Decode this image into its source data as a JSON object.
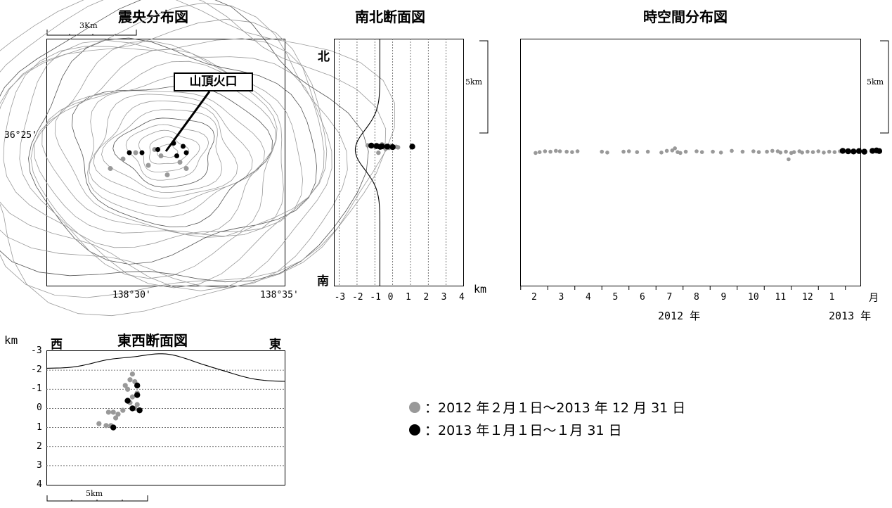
{
  "colors": {
    "past": "#999999",
    "recent": "#000000",
    "contour": "#9a9a9a",
    "frame": "#000000"
  },
  "chart_data": [
    {
      "id": "epicenter",
      "type": "scatter",
      "title": "震央分布図",
      "scale_label": "3Km",
      "lat_label": "36°25'",
      "lon_labels": [
        "138°30'",
        "138°35'"
      ],
      "crater_label": "山頂火口",
      "series": [
        {
          "name": "past",
          "x": [
            138.506,
            138.508,
            138.51,
            138.512,
            138.514,
            138.515,
            138.517,
            138.518,
            138.513
          ],
          "y": [
            36.4155,
            36.417,
            36.418,
            36.416,
            36.4175,
            36.4145,
            36.4165,
            36.4155,
            36.4185
          ]
        },
        {
          "name": "recent",
          "x": [
            138.509,
            138.511,
            138.5135,
            138.516,
            138.5175,
            138.518,
            138.5165
          ],
          "y": [
            36.418,
            36.418,
            36.4185,
            36.4195,
            36.419,
            36.418,
            36.4175
          ]
        }
      ]
    },
    {
      "id": "ns_section",
      "type": "scatter",
      "title": "南北断面図",
      "north_label": "北",
      "south_label": "南",
      "scale_label": "5km",
      "xlabel": "km",
      "xticks": [
        "-3",
        "-2",
        "-1",
        "0",
        "1",
        "2",
        "3",
        "4"
      ],
      "xlim": [
        -3.3,
        4.0
      ],
      "series": [
        {
          "name": "past",
          "x": [
            -1.4,
            -1.1,
            -0.9,
            -0.7,
            -0.5,
            -0.3,
            -0.1,
            0.2,
            -0.6,
            -0.2,
            -1.0,
            -0.4,
            0.3,
            -0.8
          ],
          "y": [
            1.2,
            1.1,
            1.3,
            1.0,
            1.2,
            0.95,
            1.1,
            0.9,
            1.4,
            0.7,
            1.0,
            0.5,
            0.8,
            -0.3
          ]
        },
        {
          "name": "recent",
          "x": [
            -1.2,
            -0.9,
            -0.6,
            -0.3,
            0.0,
            1.1,
            -0.7
          ],
          "y": [
            1.15,
            1.05,
            1.0,
            0.95,
            0.85,
            0.95,
            0.9
          ]
        }
      ]
    },
    {
      "id": "time_space",
      "type": "scatter",
      "title": "時空間分布図",
      "scale_label": "5km",
      "month_axis_label": "月",
      "year_labels": [
        "2012 年",
        "2013 年"
      ],
      "xticks": [
        "2",
        "3",
        "4",
        "5",
        "6",
        "7",
        "8",
        "9",
        "10",
        "11",
        "12",
        "1"
      ],
      "series": [
        {
          "name": "past",
          "x": [
            1.05,
            1.2,
            1.4,
            1.6,
            1.8,
            1.95,
            2.2,
            2.4,
            2.6,
            3.5,
            3.7,
            4.3,
            4.5,
            4.8,
            5.2,
            5.7,
            5.9,
            6.1,
            6.2,
            6.4,
            6.3,
            6.6,
            7.0,
            7.2,
            7.6,
            7.9,
            8.3,
            8.7,
            9.1,
            9.3,
            9.6,
            9.8,
            10.0,
            10.1,
            10.3,
            10.5,
            10.6,
            10.8,
            10.9,
            11.1,
            11.3,
            11.5,
            11.7,
            11.9,
            12.1,
            12.3,
            10.4
          ],
          "y": [
            0.1,
            0.3,
            0.5,
            0.4,
            0.6,
            0.5,
            0.4,
            0.3,
            0.5,
            0.4,
            0.2,
            0.4,
            0.5,
            0.3,
            0.4,
            0.2,
            0.6,
            0.7,
            1.2,
            0.1,
            0.3,
            0.4,
            0.5,
            0.3,
            0.4,
            0.2,
            0.6,
            0.4,
            0.5,
            0.3,
            0.4,
            0.6,
            0.5,
            0.2,
            0.4,
            0.1,
            0.3,
            0.5,
            0.2,
            0.4,
            0.3,
            0.5,
            0.2,
            0.4,
            0.3,
            0.5,
            -1.4
          ]
        },
        {
          "name": "recent",
          "x": [
            12.4,
            12.6,
            12.8,
            13.0,
            13.2,
            13.5,
            13.65,
            13.75
          ],
          "y": [
            0.6,
            0.5,
            0.45,
            0.55,
            0.4,
            0.6,
            0.7,
            0.55
          ]
        }
      ]
    },
    {
      "id": "ew_section",
      "type": "scatter",
      "title": "東西断面図",
      "west_label": "西",
      "east_label": "東",
      "ylabel": "km",
      "scale_label": "5km",
      "yticks": [
        "-3",
        "-2",
        "-1",
        "0",
        "1",
        "2",
        "3",
        "4"
      ],
      "ylim": [
        -3,
        4
      ],
      "series": [
        {
          "name": "past",
          "x": [
            0.22,
            0.25,
            0.28,
            0.3,
            0.32,
            0.35,
            0.38,
            0.33,
            0.34,
            0.36,
            0.37,
            0.35,
            0.36,
            0.37,
            0.38,
            0.27,
            0.29,
            0.26
          ],
          "y": [
            0.8,
            0.9,
            0.2,
            0.3,
            0.1,
            -0.3,
            -0.8,
            -1.2,
            -1.0,
            -0.6,
            0.0,
            -1.5,
            -1.8,
            -1.4,
            -0.2,
            0.9,
            0.5,
            0.2
          ]
        },
        {
          "name": "recent",
          "x": [
            0.28,
            0.34,
            0.36,
            0.38,
            0.39,
            0.38
          ],
          "y": [
            1.0,
            -0.4,
            0.0,
            -1.2,
            0.1,
            -0.7
          ]
        }
      ]
    }
  ],
  "legend": [
    {
      "series": "past",
      "text": "：2012 年２月１日～2013 年 12 月 31 日"
    },
    {
      "series": "recent",
      "text": "：2013 年１月１日～１月 31 日"
    }
  ]
}
